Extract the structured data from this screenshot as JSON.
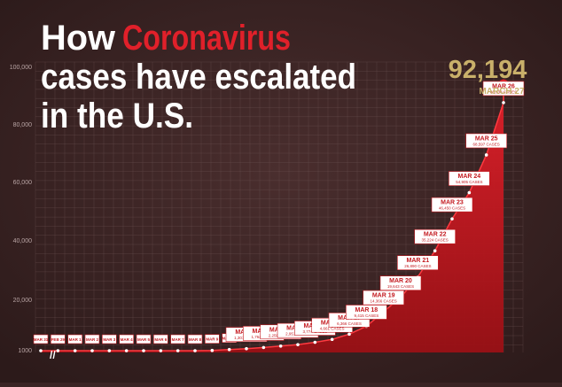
{
  "title": {
    "line1_prefix": "How",
    "line1_highlight": "Coronavirus",
    "line2": "cases have escalated",
    "line3": "in the U.S."
  },
  "colors": {
    "background": "#3a2424",
    "accent_red": "#e0202a",
    "gold": "#c9b06a",
    "grid": "#6e5454",
    "title_white": "#ffffff"
  },
  "chart_data": {
    "type": "area",
    "title": "How Coronavirus cases have escalated in the U.S.",
    "y_ticks": [
      "1000",
      "20,000",
      "40,000",
      "60,000",
      "80,000",
      "100,000"
    ],
    "ylim": [
      0,
      100000
    ],
    "axis_break": "//",
    "headline": {
      "value_label": "92,194",
      "date_label": "MARCH 27",
      "value": 92194
    },
    "points": [
      {
        "date": "MAR 26",
        "value": 86000
      },
      {
        "date": "MAR 25",
        "value": 68000
      },
      {
        "date": "MAR 24",
        "value": 55000
      },
      {
        "date": "MAR 23",
        "value": 46000
      },
      {
        "date": "MAR 22",
        "value": 35000
      },
      {
        "date": "MAR 21",
        "value": 26000
      },
      {
        "date": "MAR 20",
        "value": 19000
      },
      {
        "date": "MAR 19",
        "value": 14000
      },
      {
        "date": "MAR 18",
        "value": 9000
      },
      {
        "date": "MAR 17",
        "value": 6300
      },
      {
        "date": "MAR 16",
        "value": 4500
      },
      {
        "date": "MAR 15",
        "value": 3500
      },
      {
        "date": "MAR 14",
        "value": 2700
      },
      {
        "date": "MAR 13",
        "value": 2200
      },
      {
        "date": "MAR 12",
        "value": 1700
      },
      {
        "date": "MAR 11",
        "value": 1300
      },
      {
        "date": "MAR 10",
        "value": 1000
      },
      {
        "date": "MAR 9",
        "value": 700
      },
      {
        "date": "MAR 8",
        "value": 550
      },
      {
        "date": "MAR 7",
        "value": 450
      },
      {
        "date": "MAR 6",
        "value": 350
      },
      {
        "date": "MAR 5",
        "value": 250
      },
      {
        "date": "MAR 4",
        "value": 180
      },
      {
        "date": "MAR 3",
        "value": 120
      },
      {
        "date": "MAR 2",
        "value": 100
      },
      {
        "date": "MAR 1",
        "value": 80
      },
      {
        "date": "FEB 29",
        "value": 70
      },
      {
        "date": "MAR 31",
        "value": 50
      }
    ],
    "labels": [
      {
        "date": "MAR 26",
        "sub": "86,038 CASES"
      },
      {
        "date": "MAR 25",
        "sub": "68,597 CASES"
      },
      {
        "date": "MAR 24",
        "sub": "54,905 CASES"
      },
      {
        "date": "MAR 23",
        "sub": "46,450 CASES"
      },
      {
        "date": "MAR 22",
        "sub": "35,224 CASES"
      },
      {
        "date": "MAR 21",
        "sub": "26,890 CASES"
      },
      {
        "date": "MAR 20",
        "sub": "19,643 CASES"
      },
      {
        "date": "MAR 19",
        "sub": "14,366 CASES"
      },
      {
        "date": "MAR 18",
        "sub": "9,415 CASES"
      },
      {
        "date": "MAR 17",
        "sub": "6,366 CASES"
      },
      {
        "date": "MAR 16",
        "sub": "4,661 CASES"
      },
      {
        "date": "MAR 15",
        "sub": "3,774 CASES"
      },
      {
        "date": "MAR 14",
        "sub": "2,951 CASES"
      },
      {
        "date": "MAR 13",
        "sub": "2,259 CASES"
      },
      {
        "date": "MAR 12",
        "sub": "1,764 CASES"
      },
      {
        "date": "MAR 11",
        "sub": "1,301 CASES"
      },
      {
        "date": "MAR 10",
        "sub": ""
      },
      {
        "date": "MAR 9",
        "sub": ""
      },
      {
        "date": "MAR 8",
        "sub": ""
      },
      {
        "date": "MAR 7",
        "sub": ""
      },
      {
        "date": "MAR 6",
        "sub": ""
      },
      {
        "date": "MAR 5",
        "sub": ""
      },
      {
        "date": "MAR 4",
        "sub": ""
      },
      {
        "date": "MAR 3",
        "sub": ""
      },
      {
        "date": "MAR 2",
        "sub": ""
      },
      {
        "date": "MAR 1",
        "sub": ""
      },
      {
        "date": "FEB 29",
        "sub": ""
      },
      {
        "date": "MAR 31",
        "sub": ""
      }
    ]
  }
}
